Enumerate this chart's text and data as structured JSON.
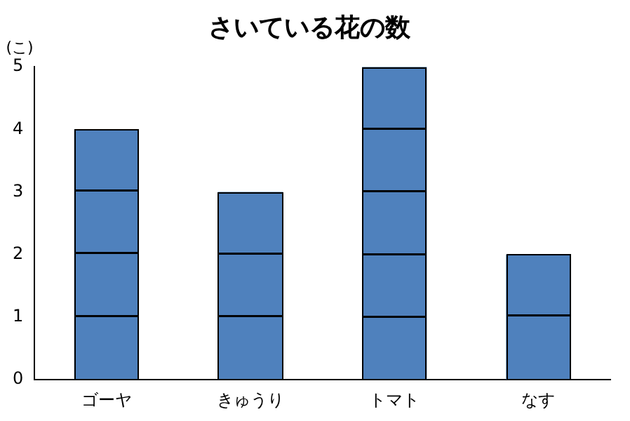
{
  "chart_data": {
    "type": "bar",
    "title": "さいている花の数",
    "ylabel": "(こ)",
    "categories": [
      "ゴーヤ",
      "きゅうり",
      "トマト",
      "なす"
    ],
    "values": [
      4,
      3,
      5,
      2
    ],
    "color": "#4f81bd",
    "ylim": [
      0,
      5
    ],
    "yticks": [
      0,
      1,
      2,
      3,
      4,
      5
    ],
    "grid": false,
    "legend": false
  }
}
